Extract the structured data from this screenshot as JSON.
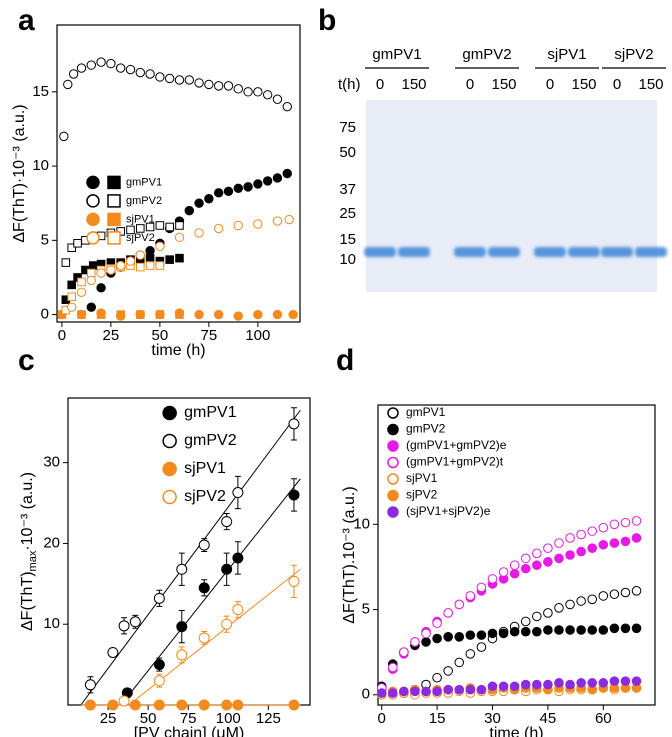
{
  "chart_data": [
    {
      "type": "scatter",
      "label": "a",
      "xlabel": "time (h)",
      "ylabel": "ΔF(ThT)·10⁻³ (a.u.)",
      "xlim": [
        -2.5,
        121.5
      ],
      "ylim": [
        -0.5,
        19.5
      ],
      "xticks": [
        0,
        25,
        50,
        75,
        100
      ],
      "yticks": [
        0,
        5,
        10,
        15
      ],
      "legend": "center-left",
      "series": [
        {
          "name": "gmPV1",
          "color": "#000000",
          "filled": true,
          "x": [
            15,
            20,
            25,
            30,
            35,
            40,
            45,
            50,
            55,
            60,
            65,
            70,
            75,
            80,
            85,
            90,
            95,
            100,
            105,
            110,
            115
          ],
          "values": [
            0.5,
            1.8,
            2.8,
            3.2,
            3.6,
            4.0,
            4.3,
            4.8,
            5.8,
            6.3,
            7.0,
            7.5,
            7.8,
            8.2,
            8.3,
            8.5,
            8.6,
            8.8,
            9.0,
            9.2,
            9.5
          ],
          "square_x": [
            2,
            5,
            8,
            12,
            16,
            20,
            25,
            30,
            35,
            40,
            45,
            50,
            55,
            60
          ],
          "square_values": [
            1.0,
            2.0,
            2.5,
            3.0,
            3.3,
            3.4,
            3.5,
            3.5,
            3.7,
            3.6,
            3.8,
            3.6,
            3.7,
            3.8
          ]
        },
        {
          "name": "gmPV2",
          "color": "#000000",
          "filled": false,
          "x": [
            1,
            3,
            6,
            10,
            15,
            20,
            25,
            30,
            35,
            40,
            45,
            50,
            55,
            60,
            65,
            70,
            75,
            80,
            85,
            90,
            95,
            100,
            105,
            110,
            115
          ],
          "values": [
            12,
            15.5,
            16.2,
            16.6,
            16.8,
            17,
            16.9,
            16.6,
            16.5,
            16.3,
            16.2,
            16,
            15.9,
            15.8,
            15.8,
            15.6,
            15.5,
            15.4,
            15.4,
            15.2,
            15.0,
            15.0,
            14.8,
            14.5,
            14.0
          ],
          "square_x": [
            2,
            5,
            8,
            12,
            16,
            20,
            25,
            30,
            35,
            40,
            45,
            50,
            55,
            60
          ],
          "square_values": [
            3.5,
            4.5,
            4.8,
            5.0,
            5.2,
            5.3,
            5.5,
            5.6,
            5.7,
            5.8,
            5.9,
            6.0,
            5.9,
            6.0
          ]
        },
        {
          "name": "sjPV1",
          "color": "#f28a1e",
          "filled": true,
          "x": [
            0,
            10,
            20,
            30,
            40,
            50,
            60,
            70,
            80,
            90,
            100,
            110,
            118
          ],
          "values": [
            0,
            0,
            0.1,
            -0.1,
            0,
            0,
            0.1,
            0,
            0,
            -0.1,
            0,
            0,
            0
          ],
          "square_x": [
            0,
            10,
            20,
            30,
            40,
            50,
            60
          ],
          "square_values": [
            0,
            0,
            0,
            0,
            0,
            0,
            0
          ]
        },
        {
          "name": "sjPV2",
          "color": "#f28a1e",
          "filled": false,
          "x": [
            5,
            10,
            15,
            20,
            25,
            30,
            35,
            40,
            50,
            60,
            70,
            80,
            90,
            100,
            110,
            116
          ],
          "values": [
            0.5,
            1.5,
            2.3,
            2.8,
            3.0,
            3.3,
            3.6,
            4.0,
            4.6,
            5.2,
            5.5,
            5.8,
            6.0,
            6.1,
            6.3,
            6.4
          ],
          "square_x": [
            2,
            5,
            10,
            15,
            20,
            25,
            30,
            35,
            40,
            45,
            50
          ],
          "square_values": [
            0.3,
            1.2,
            2.2,
            2.8,
            3.0,
            3.1,
            3.2,
            3.3,
            3.2,
            3.3,
            3.3
          ]
        }
      ]
    },
    {
      "type": "gel",
      "label": "b",
      "time_label": "t(h)",
      "lanes": [
        {
          "name": "gmPV1",
          "times": [
            0,
            150
          ]
        },
        {
          "name": "gmPV2",
          "times": [
            0,
            150
          ]
        },
        {
          "name": "sjPV1",
          "times": [
            0,
            150
          ]
        },
        {
          "name": "sjPV2",
          "times": [
            0,
            150
          ]
        }
      ],
      "markers": [
        75,
        50,
        37,
        25,
        15,
        10
      ]
    },
    {
      "type": "scatter",
      "label": "c",
      "xlabel": "[PV chain] (μM)",
      "ylabel": "ΔF(ThT)",
      "ylabel_sub": "max",
      "ylabel_end": "·10⁻³ (a.u.)",
      "xlim": [
        0,
        151
      ],
      "ylim": [
        0,
        38
      ],
      "xticks": [
        25,
        50,
        75,
        100,
        125
      ],
      "yticks": [
        10,
        20,
        30
      ],
      "legend": "upper-center",
      "series": [
        {
          "name": "gmPV1",
          "color": "#000000",
          "filled": true,
          "x": [
            37,
            57,
            71,
            85,
            99,
            106,
            141
          ],
          "values": [
            1.5,
            5,
            9.7,
            14.5,
            16.8,
            18.2,
            26
          ],
          "errors": [
            0.5,
            0.8,
            2,
            1,
            2,
            2,
            2
          ],
          "fit_x": [
            33,
            145
          ],
          "fit_values": [
            0,
            28
          ]
        },
        {
          "name": "gmPV2",
          "color": "#000000",
          "filled": false,
          "x": [
            14,
            28,
            35,
            42,
            57,
            71,
            85,
            99,
            106,
            141
          ],
          "values": [
            2.5,
            6.5,
            9.8,
            10.3,
            13.2,
            16.8,
            19.8,
            22.7,
            26.3,
            34.8
          ],
          "errors": [
            1,
            0.5,
            1,
            0.8,
            1,
            2,
            0.8,
            1,
            2,
            2
          ],
          "fit_x": [
            8,
            145
          ],
          "fit_values": [
            0,
            36.5
          ]
        },
        {
          "name": "sjPV1",
          "color": "#f28a1e",
          "filled": true,
          "x": [
            14,
            28,
            42,
            57,
            71,
            85,
            99,
            106,
            141
          ],
          "values": [
            0,
            0,
            0,
            0,
            0,
            0,
            0,
            0,
            0
          ],
          "fit_x": [
            8,
            145
          ],
          "fit_values": [
            0,
            0
          ]
        },
        {
          "name": "sjPV2",
          "color": "#f28a1e",
          "filled": false,
          "x": [
            35,
            57,
            71,
            85,
            99,
            106,
            141
          ],
          "values": [
            0.5,
            3,
            6.2,
            8.3,
            10,
            11.8,
            15.3
          ],
          "errors": [
            0.5,
            0.8,
            1,
            0.8,
            1,
            1,
            2
          ],
          "fit_x": [
            38,
            145
          ],
          "fit_values": [
            0,
            16.8
          ]
        }
      ]
    },
    {
      "type": "scatter",
      "label": "d",
      "xlabel": "time (h)",
      "ylabel": "ΔF(ThT).10⁻³ (a.u.)",
      "xlim": [
        -1,
        74
      ],
      "ylim": [
        -0.6,
        17
      ],
      "xticks": [
        0,
        15,
        30,
        45,
        60
      ],
      "yticks": [
        0,
        5,
        10
      ],
      "legend": "upper-left",
      "x": [
        0,
        3,
        6,
        9,
        12,
        15,
        18,
        21,
        24,
        27,
        30,
        33,
        36,
        39,
        42,
        45,
        48,
        51,
        54,
        57,
        60,
        63,
        66,
        69
      ],
      "series": [
        {
          "name": "gmPV1",
          "color": "#000000",
          "filled": false,
          "values": [
            0,
            0,
            0.1,
            0.3,
            0.6,
            1.0,
            1.4,
            1.9,
            2.4,
            2.8,
            3.3,
            3.7,
            4.0,
            4.3,
            4.6,
            4.8,
            5.1,
            5.3,
            5.5,
            5.6,
            5.8,
            5.9,
            6.0,
            6.1
          ]
        },
        {
          "name": "gmPV2",
          "color": "#000000",
          "filled": true,
          "values": [
            0.5,
            1.8,
            2.5,
            2.9,
            3.1,
            3.3,
            3.4,
            3.4,
            3.5,
            3.5,
            3.6,
            3.6,
            3.7,
            3.7,
            3.7,
            3.8,
            3.8,
            3.8,
            3.8,
            3.8,
            3.8,
            3.9,
            3.9,
            3.9
          ]
        },
        {
          "name": "(gmPV1+gmPV2)e",
          "color": "#e619e6",
          "filled": true,
          "values": [
            0.3,
            1.5,
            2.4,
            3.1,
            3.7,
            4.3,
            4.8,
            5.3,
            5.7,
            6.1,
            6.5,
            6.8,
            7.1,
            7.4,
            7.6,
            7.8,
            8.0,
            8.2,
            8.4,
            8.6,
            8.8,
            8.9,
            9.0,
            9.2
          ]
        },
        {
          "name": "(gmPV1+gmPV2)t",
          "color": "#e619e6",
          "filled": false,
          "values": [
            0.4,
            1.6,
            2.5,
            3.1,
            3.6,
            4.2,
            4.8,
            5.3,
            5.8,
            6.3,
            6.8,
            7.2,
            7.6,
            8.0,
            8.3,
            8.6,
            8.9,
            9.2,
            9.4,
            9.6,
            9.8,
            10.0,
            10.1,
            10.2
          ]
        },
        {
          "name": "sjPV1",
          "color": "#f28a1e",
          "filled": false,
          "values": [
            0,
            0,
            0.1,
            0,
            0.1,
            0.1,
            0.1,
            0.2,
            0.1,
            0.2,
            0.2,
            0.2,
            0.3,
            0.2,
            0.3,
            0.3,
            0.2,
            0.3,
            0.3,
            0.3,
            0.4,
            0.3,
            0.4,
            0.4
          ]
        },
        {
          "name": "sjPV2",
          "color": "#f28a1e",
          "filled": true,
          "values": [
            0.1,
            0.2,
            0.2,
            0.3,
            0.2,
            0.3,
            0.3,
            0.3,
            0.4,
            0.3,
            0.3,
            0.4,
            0.3,
            0.4,
            0.4,
            0.3,
            0.4,
            0.4,
            0.4,
            0.3,
            0.4,
            0.4,
            0.4,
            0.4
          ]
        },
        {
          "name": "(sjPV1+sjPV2)e",
          "color": "#8a2be2",
          "filled": true,
          "values": [
            0.1,
            0.1,
            0.2,
            0.2,
            0.2,
            0.2,
            0.3,
            0.3,
            0.3,
            0.3,
            0.5,
            0.5,
            0.5,
            0.6,
            0.6,
            0.6,
            0.7,
            0.6,
            0.7,
            0.7,
            0.7,
            0.8,
            0.8,
            0.8
          ]
        }
      ]
    }
  ]
}
